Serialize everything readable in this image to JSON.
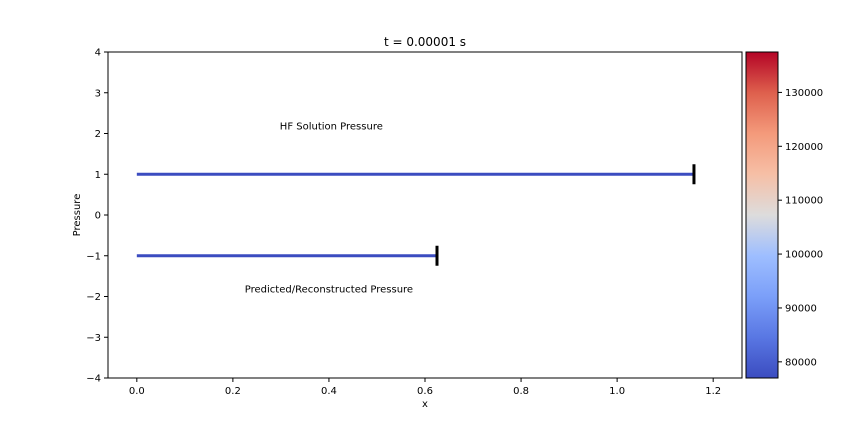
{
  "chart_data": {
    "type": "line",
    "title": "t = 0.00001 s",
    "xlabel": "x",
    "ylabel": "Pressure",
    "xlim": [
      -0.06,
      1.26
    ],
    "ylim": [
      -4,
      4
    ],
    "xticks": [
      0.0,
      0.2,
      0.4,
      0.6,
      0.8,
      1.0,
      1.2
    ],
    "xtick_labels": [
      "0.0",
      "0.2",
      "0.4",
      "0.6",
      "0.8",
      "1.0",
      "1.2"
    ],
    "yticks": [
      4,
      3,
      2,
      1,
      0,
      -1,
      -2,
      -3,
      -4
    ],
    "ytick_labels": [
      "4",
      "3",
      "2",
      "1",
      "0",
      "−1",
      "−2",
      "−3",
      "−4"
    ],
    "grid": false,
    "series": [
      {
        "x_start": 0.0,
        "x_end": 1.16,
        "y": 1,
        "end_marker_x": 1.16,
        "pressure": 78000,
        "color": "#3b4cc0"
      },
      {
        "x_start": 0.0,
        "x_end": 0.625,
        "y": -1,
        "end_marker_x": 0.625,
        "pressure": 78000,
        "color": "#3b4cc0"
      }
    ],
    "annotations": [
      {
        "text": "HF Solution Pressure",
        "x": 0.405,
        "y": 2.1
      },
      {
        "text": "Predicted/Reconstructed Pressure",
        "x": 0.4,
        "y": -1.9
      }
    ],
    "colorbar": {
      "cmap": "coolwarm",
      "vmin": 77000,
      "vmax": 137500,
      "ticks": [
        80000,
        90000,
        100000,
        110000,
        120000,
        130000
      ],
      "tick_labels": [
        "80000",
        "90000",
        "100000",
        "110000",
        "120000",
        "130000"
      ]
    }
  }
}
